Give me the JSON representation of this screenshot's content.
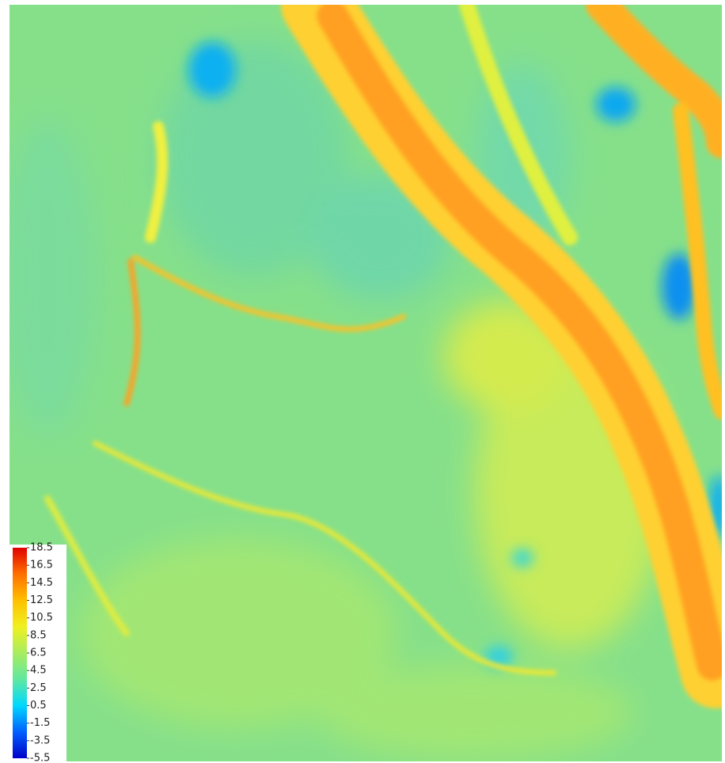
{
  "colorbar": {
    "range": [
      -5.5,
      18.5
    ],
    "ticks": [
      18.5,
      16.5,
      14.5,
      12.5,
      10.5,
      8.5,
      6.5,
      4.5,
      2.5,
      0.5,
      -1.5,
      -3.5,
      -5.5
    ],
    "colors": [
      "#0000c8",
      "#0060ff",
      "#00d8ff",
      "#60e8a0",
      "#a8ec60",
      "#f0f020",
      "#ffc000",
      "#ff7000",
      "#e00000"
    ]
  }
}
